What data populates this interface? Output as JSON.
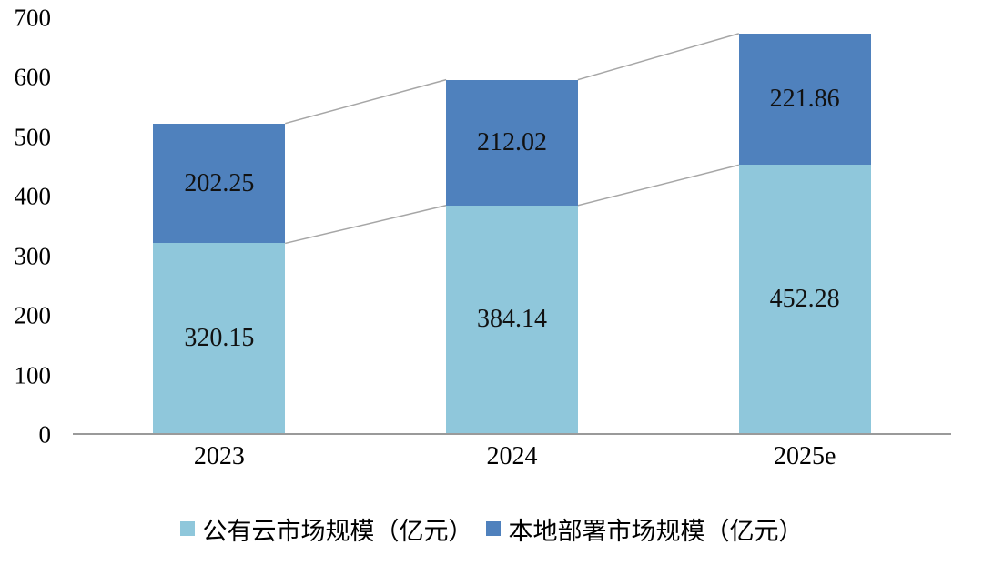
{
  "chart_data": {
    "type": "bar",
    "stacked": true,
    "title": "",
    "xlabel": "",
    "ylabel": "",
    "categories": [
      "2023",
      "2024",
      "2025e"
    ],
    "series": [
      {
        "name": "公有云市场规模（亿元）",
        "color": "#8FC7DB",
        "values": [
          320.15,
          384.14,
          452.28
        ]
      },
      {
        "name": "本地部署市场规模（亿元）",
        "color": "#4F81BD",
        "values": [
          202.25,
          212.02,
          221.86
        ]
      }
    ],
    "totals": [
      522.4,
      596.16,
      674.14
    ],
    "ylim": [
      0,
      700
    ],
    "yticks": [
      0,
      100,
      200,
      300,
      400,
      500,
      600,
      700
    ],
    "grid": false,
    "legend_position": "bottom",
    "connector_lines": true,
    "connector_color": "#A6A6A6",
    "axis_line_color": "#9a9a9a",
    "label_color": "#111111"
  }
}
